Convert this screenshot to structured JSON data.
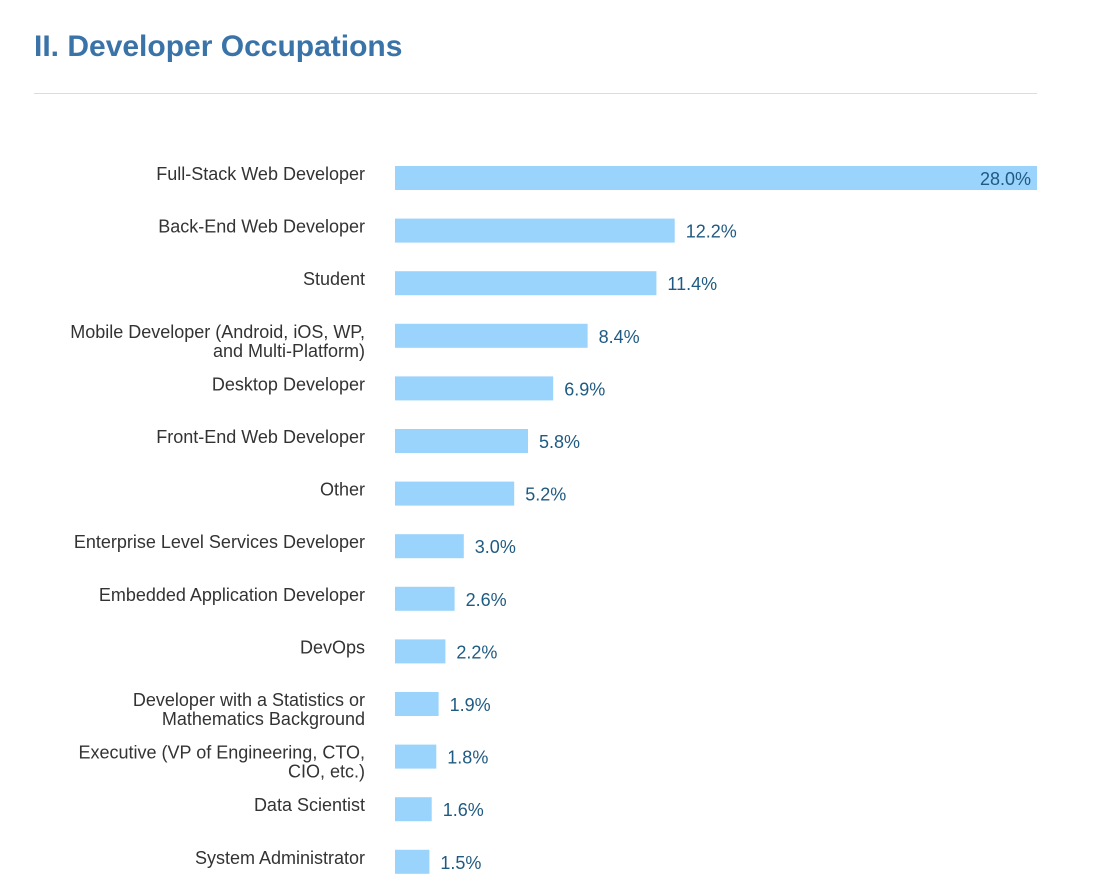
{
  "page": {
    "title": "II. Developer Occupations"
  },
  "colors": {
    "title": "#3a73a8",
    "bar": "#9ad3fb",
    "value_label": "#1f5a82",
    "category_label": "#333333"
  },
  "chart_data": {
    "type": "bar",
    "orientation": "horizontal",
    "title": "II. Developer Occupations",
    "xlabel": "",
    "ylabel": "",
    "xlim": [
      0,
      28.0
    ],
    "grid": false,
    "legend": "none",
    "unit": "%",
    "categories": [
      [
        "Full-Stack Web Developer"
      ],
      [
        "Back-End Web Developer"
      ],
      [
        "Student"
      ],
      [
        "Mobile Developer (Android, iOS, WP,",
        "and Multi-Platform)"
      ],
      [
        "Desktop Developer"
      ],
      [
        "Front-End Web Developer"
      ],
      [
        "Other"
      ],
      [
        "Enterprise Level Services Developer"
      ],
      [
        "Embedded Application Developer"
      ],
      [
        "DevOps"
      ],
      [
        "Developer with a Statistics or",
        "Mathematics Background"
      ],
      [
        "Executive (VP of Engineering, CTO,",
        "CIO, etc.)"
      ],
      [
        "Data Scientist"
      ],
      [
        "System Administrator"
      ]
    ],
    "values": [
      28.0,
      12.2,
      11.4,
      8.4,
      6.9,
      5.8,
      5.2,
      3.0,
      2.6,
      2.2,
      1.9,
      1.8,
      1.6,
      1.5
    ],
    "value_labels": [
      "28.0%",
      "12.2%",
      "11.4%",
      "8.4%",
      "6.9%",
      "5.8%",
      "5.2%",
      "3.0%",
      "2.6%",
      "2.2%",
      "1.9%",
      "1.8%",
      "1.6%",
      "1.5%"
    ]
  }
}
